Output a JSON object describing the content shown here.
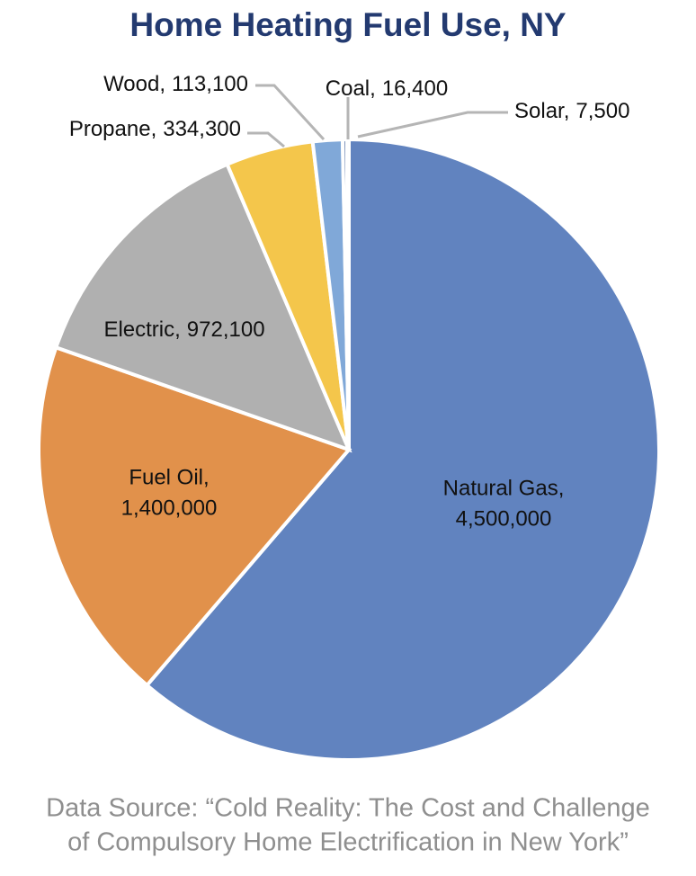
{
  "chart_data": {
    "type": "pie",
    "title": "Home Heating Fuel Use, NY",
    "categories": [
      "Natural Gas,",
      "Fuel Oil,",
      "Electric,",
      "Propane,",
      "Wood,",
      "Coal,",
      "Solar,"
    ],
    "values": [
      4500000,
      1400000,
      972100,
      334300,
      113100,
      16400,
      7500
    ],
    "value_labels": [
      "4,500,000",
      "1,400,000",
      "972,100",
      "334,300",
      "113,100",
      "16,400",
      "7,500"
    ],
    "colors": [
      "#6183bf",
      "#e1914b",
      "#b0b0b0",
      "#f4c64b",
      "#80a8d8",
      "#3f5f9b",
      "#9c9c9c"
    ],
    "source": [
      "Data Source: “Cold Reality: The Cost and Challenge",
      "of Compulsory Home Electrification in New York”"
    ]
  }
}
